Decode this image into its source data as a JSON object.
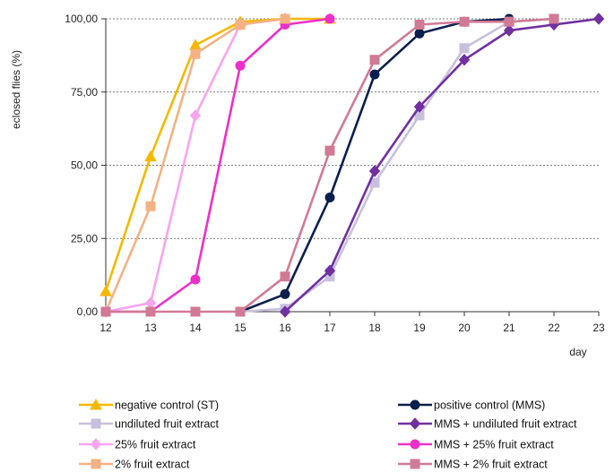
{
  "chart_data": {
    "type": "line",
    "title": "",
    "xlabel": "day",
    "ylabel": "eclosed flies  (%)",
    "x": [
      12,
      13,
      14,
      15,
      16,
      17,
      18,
      19,
      20,
      21,
      22,
      23
    ],
    "xlim": [
      12,
      23
    ],
    "ylim": [
      0,
      100
    ],
    "yticks": [
      "0,00",
      "25,00",
      "50,00",
      "75,00",
      "100,00"
    ],
    "ytick_values": [
      0,
      25,
      50,
      75,
      100
    ],
    "grid": "horizontal-dashed",
    "legend_position": "bottom",
    "series": [
      {
        "name": "negative control (ST)",
        "color": "#F5B800",
        "marker": "triangle",
        "points": [
          [
            12,
            7
          ],
          [
            13,
            53
          ],
          [
            14,
            91
          ],
          [
            15,
            99
          ],
          [
            16,
            100
          ],
          [
            17,
            100
          ]
        ]
      },
      {
        "name": "positive control (MMS)",
        "color": "#0B1F4D",
        "marker": "circle",
        "points": [
          [
            15,
            0
          ],
          [
            16,
            6
          ],
          [
            17,
            39
          ],
          [
            18,
            81
          ],
          [
            19,
            95
          ],
          [
            20,
            99
          ],
          [
            21,
            100
          ]
        ]
      },
      {
        "name": "undiluted fruit extract",
        "color": "#C8C0DC",
        "marker": "square",
        "points": [
          [
            15,
            0
          ],
          [
            16,
            1
          ],
          [
            17,
            12
          ],
          [
            18,
            44
          ],
          [
            19,
            67
          ],
          [
            20,
            90
          ],
          [
            21,
            99
          ],
          [
            22,
            100
          ]
        ]
      },
      {
        "name": "MMS + undiluted fruit extract",
        "color": "#7030A0",
        "marker": "diamond",
        "points": [
          [
            16,
            0
          ],
          [
            17,
            14
          ],
          [
            18,
            48
          ],
          [
            19,
            70
          ],
          [
            20,
            86
          ],
          [
            21,
            96
          ],
          [
            22,
            98
          ],
          [
            23,
            100
          ]
        ]
      },
      {
        "name": "25% fruit extract",
        "color": "#F7A5EE",
        "marker": "diamond",
        "points": [
          [
            12,
            0
          ],
          [
            13,
            3
          ],
          [
            14,
            67
          ],
          [
            15,
            98
          ],
          [
            16,
            100
          ]
        ]
      },
      {
        "name": "MMS + 25% fruit extract",
        "color": "#EE2FC9",
        "marker": "circle",
        "points": [
          [
            12,
            0
          ],
          [
            13,
            0
          ],
          [
            14,
            11
          ],
          [
            15,
            84
          ],
          [
            16,
            98
          ],
          [
            17,
            100
          ]
        ]
      },
      {
        "name": "2% fruit extract",
        "color": "#F4B183",
        "marker": "square",
        "points": [
          [
            12,
            0
          ],
          [
            13,
            36
          ],
          [
            14,
            88
          ],
          [
            15,
            98
          ],
          [
            16,
            100
          ]
        ]
      },
      {
        "name": "MMS + 2% fruit extract",
        "color": "#D07A95",
        "marker": "square",
        "points": [
          [
            12,
            0
          ],
          [
            13,
            0
          ],
          [
            14,
            0
          ],
          [
            15,
            0
          ],
          [
            16,
            12
          ],
          [
            17,
            55
          ],
          [
            18,
            86
          ],
          [
            19,
            98
          ],
          [
            20,
            99
          ],
          [
            21,
            99
          ],
          [
            22,
            100
          ]
        ]
      }
    ]
  }
}
